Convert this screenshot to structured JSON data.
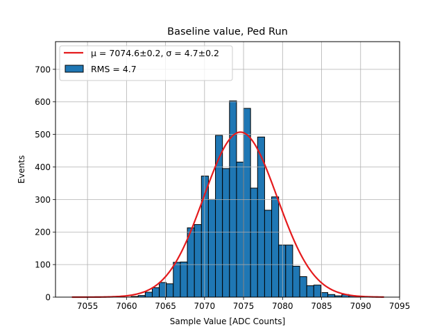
{
  "chart_data": {
    "type": "bar",
    "title": "Baseline value, Ped Run",
    "xlabel": "Sample Value [ADC Counts]",
    "ylabel": "Events",
    "xlim": [
      7050.9,
      7095.0
    ],
    "ylim": [
      0,
      785
    ],
    "grid": true,
    "legend_position": "top-left",
    "x_ticks": [
      7055,
      7060,
      7065,
      7070,
      7075,
      7080,
      7085,
      7090,
      7095
    ],
    "y_ticks": [
      0,
      100,
      200,
      300,
      400,
      500,
      600,
      700
    ],
    "histogram": {
      "name": "RMS = 4.7",
      "color": "#1f77b4",
      "edge_color": "#000000",
      "bin_width": 0.9,
      "bins": [
        {
          "x": 7060.6,
          "y": 2
        },
        {
          "x": 7061.5,
          "y": 5
        },
        {
          "x": 7062.4,
          "y": 15
        },
        {
          "x": 7063.3,
          "y": 29
        },
        {
          "x": 7064.2,
          "y": 45
        },
        {
          "x": 7065.1,
          "y": 41
        },
        {
          "x": 7066.0,
          "y": 107
        },
        {
          "x": 7066.9,
          "y": 108
        },
        {
          "x": 7067.8,
          "y": 213
        },
        {
          "x": 7068.7,
          "y": 223
        },
        {
          "x": 7069.6,
          "y": 372
        },
        {
          "x": 7070.5,
          "y": 300
        },
        {
          "x": 7071.4,
          "y": 497
        },
        {
          "x": 7072.3,
          "y": 395
        },
        {
          "x": 7073.2,
          "y": 603
        },
        {
          "x": 7074.1,
          "y": 415
        },
        {
          "x": 7075.0,
          "y": 580
        },
        {
          "x": 7075.9,
          "y": 335
        },
        {
          "x": 7076.8,
          "y": 492
        },
        {
          "x": 7077.7,
          "y": 267
        },
        {
          "x": 7078.6,
          "y": 308
        },
        {
          "x": 7079.5,
          "y": 160
        },
        {
          "x": 7080.4,
          "y": 160
        },
        {
          "x": 7081.3,
          "y": 95
        },
        {
          "x": 7082.2,
          "y": 63
        },
        {
          "x": 7083.1,
          "y": 35
        },
        {
          "x": 7084.0,
          "y": 37
        },
        {
          "x": 7084.9,
          "y": 14
        },
        {
          "x": 7085.8,
          "y": 8
        },
        {
          "x": 7086.7,
          "y": 4
        },
        {
          "x": 7087.6,
          "y": 8
        },
        {
          "x": 7088.5,
          "y": 4
        },
        {
          "x": 7089.4,
          "y": 2
        }
      ]
    },
    "fit": {
      "name": "$\\mu = $7074.6±0.2, $\\sigma = $4.7±0.2",
      "display_name": "μ = 7074.6±0.2, σ = 4.7±0.2",
      "color": "#e41a1c",
      "mu": 7074.6,
      "sigma": 4.7,
      "amplitude": 507,
      "x_range": [
        7053.0,
        7093.0
      ]
    }
  }
}
